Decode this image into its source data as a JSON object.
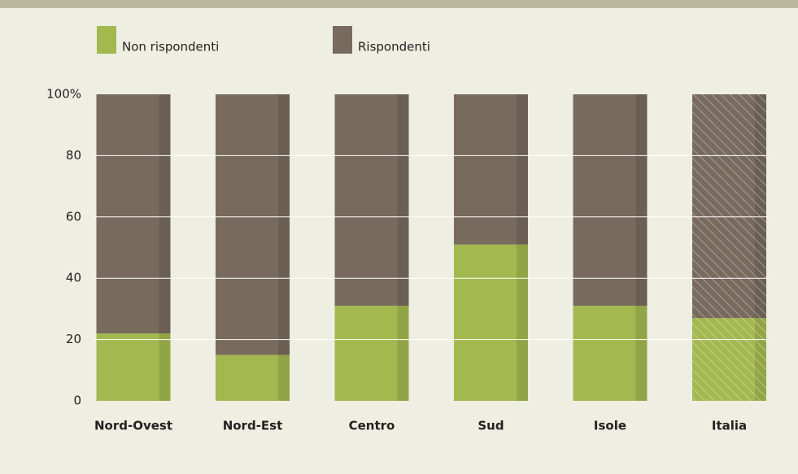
{
  "chart_data": {
    "type": "stacked_bar",
    "categories": [
      "Nord-Ovest",
      "Nord-Est",
      "Centro",
      "Sud",
      "Isole",
      "Italia"
    ],
    "series": [
      {
        "name": "Non rispondenti",
        "color": "#a3b84f",
        "values": [
          22,
          15,
          31,
          51,
          31,
          27
        ]
      },
      {
        "name": "Rispondenti",
        "color": "#786a5d",
        "values": [
          78,
          85,
          69,
          49,
          69,
          73
        ]
      }
    ],
    "ylim": [
      0,
      100
    ],
    "yticks": [
      0,
      20,
      40,
      60,
      80,
      {
        "value": 100,
        "label": "100%"
      }
    ],
    "grid": true,
    "hatched": "Italia"
  }
}
